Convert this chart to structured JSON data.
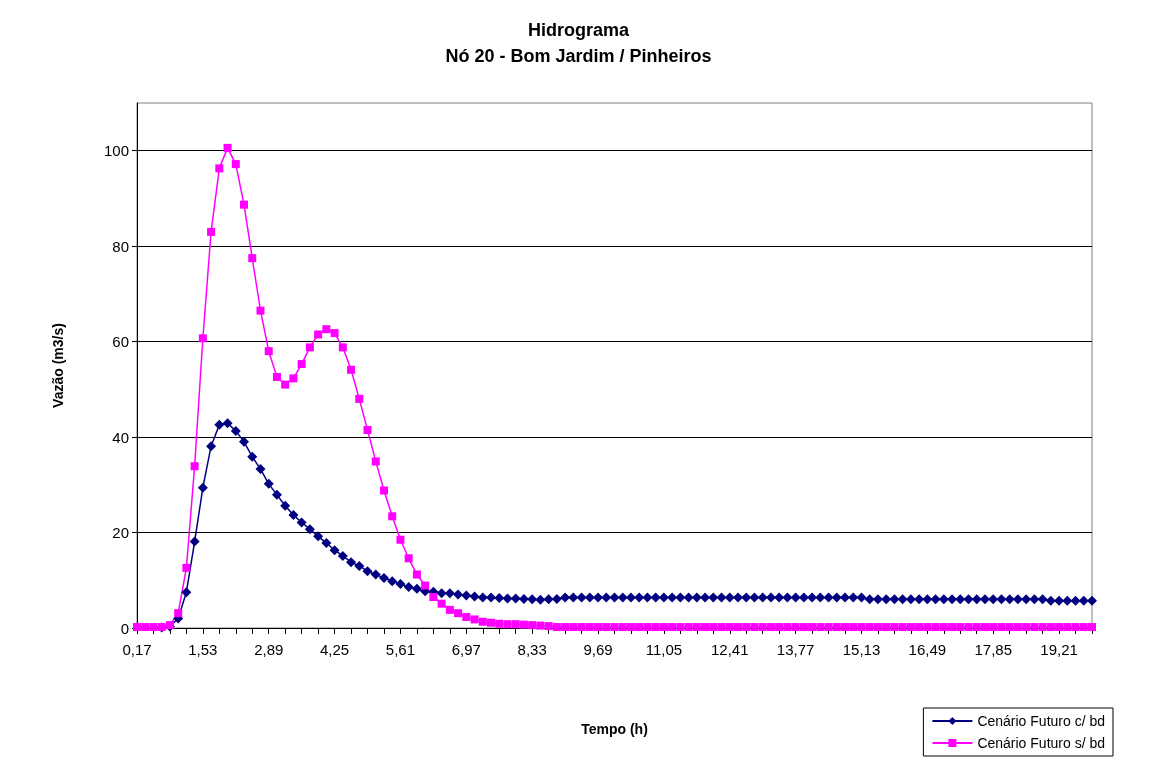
{
  "chart_data": {
    "type": "line",
    "title": "Hidrograma",
    "subtitle": "Nó 20 - Bom Jardim / Pinheiros",
    "xlabel": "Tempo (h)",
    "ylabel": "Vazão (m3/s)",
    "categories": [
      "0,17",
      null,
      null,
      null,
      null,
      null,
      null,
      null,
      "1,53",
      null,
      null,
      null,
      null,
      null,
      null,
      null,
      "2,89",
      null,
      null,
      null,
      null,
      null,
      null,
      null,
      "4,25",
      null,
      null,
      null,
      null,
      null,
      null,
      null,
      "5,61",
      null,
      null,
      null,
      null,
      null,
      null,
      null,
      "6,97",
      null,
      null,
      null,
      null,
      null,
      null,
      null,
      "8,33",
      null,
      null,
      null,
      null,
      null,
      null,
      null,
      "9,69",
      null,
      null,
      null,
      null,
      null,
      null,
      null,
      "11,05",
      null,
      null,
      null,
      null,
      null,
      null,
      null,
      "12,41",
      null,
      null,
      null,
      null,
      null,
      null,
      null,
      "13,77",
      null,
      null,
      null,
      null,
      null,
      null,
      null,
      "15,13",
      null,
      null,
      null,
      null,
      null,
      null,
      null,
      "16,49",
      null,
      null,
      null,
      null,
      null,
      null,
      null,
      "17,85",
      null,
      null,
      null,
      null,
      null,
      null,
      null,
      "19,21",
      null,
      null,
      null,
      null
    ],
    "series": [
      {
        "name": "Cenário Futuro c/ bd",
        "color": "#000080",
        "marker": "diamond",
        "values": [
          null,
          null,
          null,
          0.1,
          0.3,
          2.0,
          7.5,
          18.1,
          29.4,
          38.1,
          42.6,
          42.9,
          41.3,
          39.0,
          35.9,
          33.3,
          30.2,
          27.9,
          25.6,
          23.7,
          22.1,
          20.7,
          19.2,
          17.8,
          16.3,
          15.1,
          13.8,
          13.0,
          11.9,
          11.2,
          10.5,
          9.8,
          9.2,
          8.6,
          8.2,
          7.7,
          7.6,
          7.3,
          7.3,
          7.0,
          6.8,
          6.6,
          6.4,
          6.4,
          6.3,
          6.2,
          6.2,
          6.1,
          6.0,
          5.9,
          6.0,
          6.1,
          6.4,
          6.4,
          6.4,
          6.4,
          6.4,
          6.4,
          6.4,
          6.4,
          6.4,
          6.4,
          6.4,
          6.4,
          6.4,
          6.4,
          6.4,
          6.4,
          6.4,
          6.4,
          6.4,
          6.4,
          6.4,
          6.4,
          6.4,
          6.4,
          6.4,
          6.4,
          6.4,
          6.4,
          6.4,
          6.4,
          6.4,
          6.4,
          6.4,
          6.4,
          6.4,
          6.4,
          6.4,
          6.0,
          6.0,
          6.0,
          6.0,
          6.0,
          6.0,
          6.0,
          6.0,
          6.0,
          6.0,
          6.0,
          6.0,
          6.0,
          6.0,
          6.0,
          6.0,
          6.0,
          6.0,
          6.0,
          6.0,
          6.0,
          6.0,
          5.7,
          5.7,
          5.7,
          5.7,
          5.7,
          5.7
        ]
      },
      {
        "name": "Cenário Futuro s/ bd",
        "color": "#ff00ff",
        "marker": "square",
        "values": [
          0.2,
          0.2,
          0.2,
          0.2,
          0.6,
          3.1,
          12.6,
          33.9,
          60.7,
          83.0,
          96.3,
          100.6,
          97.2,
          88.7,
          77.5,
          66.5,
          58.0,
          52.6,
          51.0,
          52.3,
          55.3,
          58.8,
          61.5,
          62.6,
          61.8,
          58.8,
          54.1,
          48.0,
          41.5,
          34.9,
          28.8,
          23.4,
          18.5,
          14.6,
          11.2,
          8.9,
          6.5,
          5.1,
          3.8,
          3.1,
          2.3,
          1.8,
          1.3,
          1.1,
          0.9,
          0.8,
          0.8,
          0.7,
          0.6,
          0.5,
          0.4,
          0.2,
          0.2,
          0.2,
          0.2,
          0.2,
          0.2,
          0.2,
          0.2,
          0.2,
          0.2,
          0.2,
          0.2,
          0.2,
          0.2,
          0.2,
          0.2,
          0.2,
          0.2,
          0.2,
          0.2,
          0.2,
          0.2,
          0.2,
          0.2,
          0.2,
          0.2,
          0.2,
          0.2,
          0.2,
          0.2,
          0.2,
          0.2,
          0.2,
          0.2,
          0.2,
          0.2,
          0.2,
          0.2,
          0.2,
          0.2,
          0.2,
          0.2,
          0.2,
          0.2,
          0.2,
          0.2,
          0.2,
          0.2,
          0.2,
          0.2,
          0.2,
          0.2,
          0.2,
          0.2,
          0.2,
          0.2,
          0.2,
          0.2,
          0.2,
          0.2,
          0.2,
          0.2,
          0.2,
          0.2,
          0.2,
          0.2
        ]
      }
    ],
    "ylim": [
      0,
      110
    ],
    "yticks": [
      0,
      20,
      40,
      60,
      80,
      100
    ],
    "grid": "y",
    "legend": "bottom right"
  }
}
